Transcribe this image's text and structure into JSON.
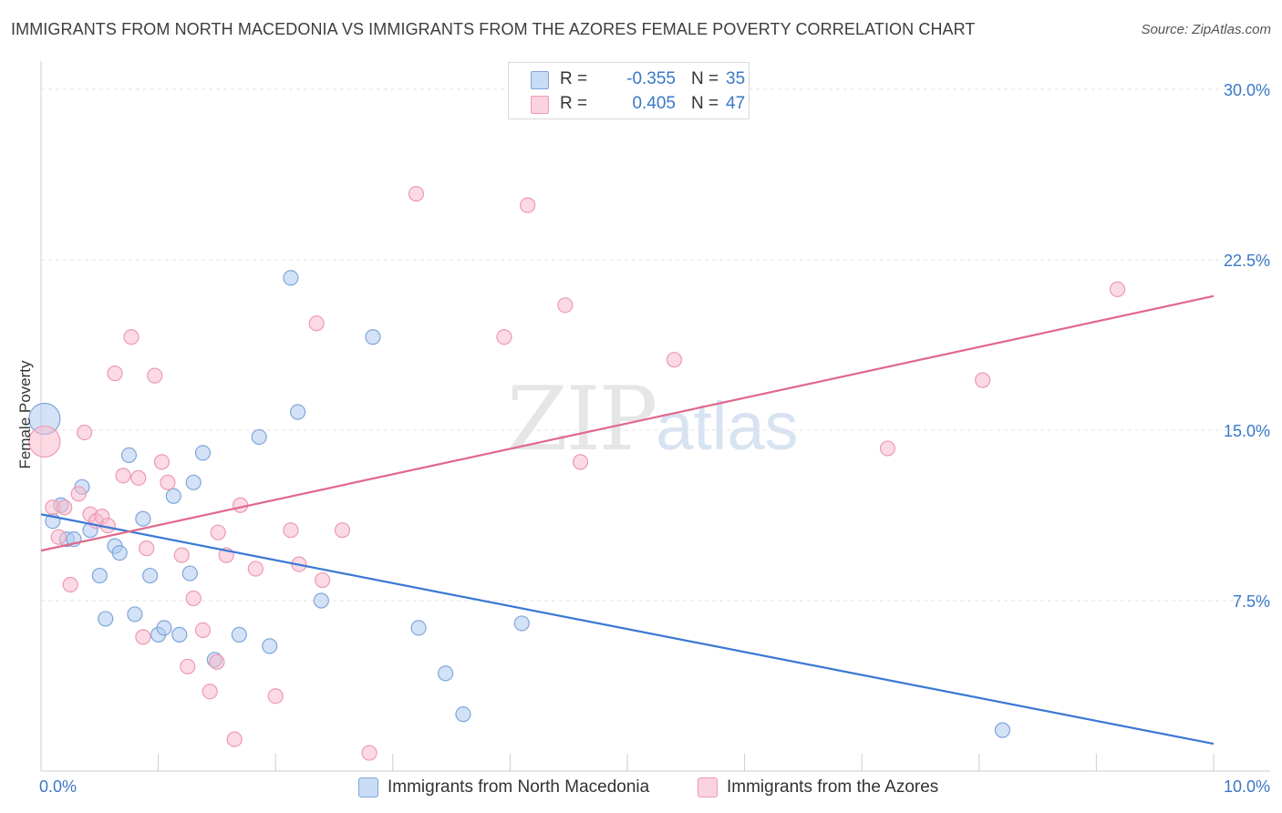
{
  "header": {
    "title": "IMMIGRANTS FROM NORTH MACEDONIA VS IMMIGRANTS FROM THE AZORES FEMALE POVERTY CORRELATION CHART",
    "source": "Source: ZipAtlas.com"
  },
  "watermark": {
    "zip": "ZIP",
    "atlas": "atlas"
  },
  "stats": {
    "rows": [
      {
        "r_label": "R =",
        "r_value": "-0.355",
        "n_label": "N =",
        "n_value": "35",
        "color": "#aecbf0"
      },
      {
        "r_label": "R =",
        "r_value": "0.405",
        "n_label": "N =",
        "n_value": "47",
        "color": "#f7bccd"
      }
    ]
  },
  "legend": {
    "items": [
      {
        "label": "Immigrants from North Macedonia",
        "color": "#aecbf0"
      },
      {
        "label": "Immigrants from the Azores",
        "color": "#f7bccd"
      }
    ]
  },
  "chart_data": {
    "type": "scatter",
    "title": "IMMIGRANTS FROM NORTH MACEDONIA VS IMMIGRANTS FROM THE AZORES FEMALE POVERTY CORRELATION CHART",
    "xlabel": "",
    "ylabel": "Female Poverty",
    "xlim": [
      0,
      10
    ],
    "ylim": [
      0,
      30.8
    ],
    "x_tick_labels": [
      {
        "value": 0,
        "label": "0.0%"
      },
      {
        "value": 10,
        "label": "10.0%"
      }
    ],
    "y_tick_labels": [
      {
        "value": 7.5,
        "label": "7.5%"
      },
      {
        "value": 15.0,
        "label": "15.0%"
      },
      {
        "value": 22.5,
        "label": "22.5%"
      },
      {
        "value": 30.0,
        "label": "30.0%"
      }
    ],
    "grid": true,
    "series": [
      {
        "name": "Immigrants from North Macedonia",
        "color": "#3a78d4",
        "fill": "#aecbf0",
        "trend": {
          "x": [
            0,
            10
          ],
          "y": [
            11.3,
            1.2
          ]
        },
        "points": [
          {
            "x": 0.03,
            "y": 15.5,
            "big": true
          },
          {
            "x": 0.1,
            "y": 11.0
          },
          {
            "x": 0.17,
            "y": 11.7
          },
          {
            "x": 0.22,
            "y": 10.2
          },
          {
            "x": 0.28,
            "y": 10.2
          },
          {
            "x": 0.35,
            "y": 12.5
          },
          {
            "x": 0.42,
            "y": 10.6
          },
          {
            "x": 0.5,
            "y": 8.6
          },
          {
            "x": 0.55,
            "y": 6.7
          },
          {
            "x": 0.63,
            "y": 9.9
          },
          {
            "x": 0.67,
            "y": 9.6
          },
          {
            "x": 0.75,
            "y": 13.9
          },
          {
            "x": 0.8,
            "y": 6.9
          },
          {
            "x": 0.87,
            "y": 11.1
          },
          {
            "x": 0.93,
            "y": 8.6
          },
          {
            "x": 1.0,
            "y": 6.0
          },
          {
            "x": 1.05,
            "y": 6.3
          },
          {
            "x": 1.13,
            "y": 12.1
          },
          {
            "x": 1.18,
            "y": 6.0
          },
          {
            "x": 1.27,
            "y": 8.7
          },
          {
            "x": 1.3,
            "y": 12.7
          },
          {
            "x": 1.38,
            "y": 14.0
          },
          {
            "x": 1.48,
            "y": 4.9
          },
          {
            "x": 1.69,
            "y": 6.0
          },
          {
            "x": 1.86,
            "y": 14.7
          },
          {
            "x": 1.95,
            "y": 5.5
          },
          {
            "x": 2.13,
            "y": 21.7
          },
          {
            "x": 2.19,
            "y": 15.8
          },
          {
            "x": 2.39,
            "y": 7.5
          },
          {
            "x": 2.83,
            "y": 19.1
          },
          {
            "x": 3.22,
            "y": 6.3
          },
          {
            "x": 3.45,
            "y": 4.3
          },
          {
            "x": 3.6,
            "y": 2.5
          },
          {
            "x": 4.1,
            "y": 6.5
          },
          {
            "x": 8.2,
            "y": 1.8
          }
        ]
      },
      {
        "name": "Immigrants from the Azores",
        "color": "#e0688c",
        "fill": "#f7bccd",
        "trend": {
          "x": [
            0,
            10
          ],
          "y": [
            9.7,
            20.9
          ]
        },
        "points": [
          {
            "x": 0.03,
            "y": 14.5,
            "big": true
          },
          {
            "x": 0.1,
            "y": 11.6
          },
          {
            "x": 0.15,
            "y": 10.3
          },
          {
            "x": 0.2,
            "y": 11.6
          },
          {
            "x": 0.25,
            "y": 8.2
          },
          {
            "x": 0.32,
            "y": 12.2
          },
          {
            "x": 0.37,
            "y": 14.9
          },
          {
            "x": 0.42,
            "y": 11.3
          },
          {
            "x": 0.47,
            "y": 11.0
          },
          {
            "x": 0.52,
            "y": 11.2
          },
          {
            "x": 0.57,
            "y": 10.8
          },
          {
            "x": 0.63,
            "y": 17.5
          },
          {
            "x": 0.7,
            "y": 13.0
          },
          {
            "x": 0.77,
            "y": 19.1
          },
          {
            "x": 0.83,
            "y": 12.9
          },
          {
            "x": 0.87,
            "y": 5.9
          },
          {
            "x": 0.9,
            "y": 9.8
          },
          {
            "x": 0.97,
            "y": 17.4
          },
          {
            "x": 1.03,
            "y": 13.6
          },
          {
            "x": 1.08,
            "y": 12.7
          },
          {
            "x": 1.2,
            "y": 9.5
          },
          {
            "x": 1.25,
            "y": 4.6
          },
          {
            "x": 1.3,
            "y": 7.6
          },
          {
            "x": 1.38,
            "y": 6.2
          },
          {
            "x": 1.44,
            "y": 3.5
          },
          {
            "x": 1.5,
            "y": 4.8
          },
          {
            "x": 1.51,
            "y": 10.5
          },
          {
            "x": 1.58,
            "y": 9.5
          },
          {
            "x": 1.65,
            "y": 1.4
          },
          {
            "x": 1.7,
            "y": 11.7
          },
          {
            "x": 1.83,
            "y": 8.9
          },
          {
            "x": 2.0,
            "y": 3.3
          },
          {
            "x": 2.13,
            "y": 10.6
          },
          {
            "x": 2.2,
            "y": 9.1
          },
          {
            "x": 2.35,
            "y": 19.7
          },
          {
            "x": 2.4,
            "y": 8.4
          },
          {
            "x": 2.57,
            "y": 10.6
          },
          {
            "x": 2.8,
            "y": 0.8
          },
          {
            "x": 3.2,
            "y": 25.4
          },
          {
            "x": 3.95,
            "y": 19.1
          },
          {
            "x": 4.15,
            "y": 24.9
          },
          {
            "x": 4.47,
            "y": 20.5
          },
          {
            "x": 4.6,
            "y": 13.6
          },
          {
            "x": 5.4,
            "y": 18.1
          },
          {
            "x": 7.22,
            "y": 14.2
          },
          {
            "x": 8.03,
            "y": 17.2
          },
          {
            "x": 9.18,
            "y": 21.2
          }
        ]
      }
    ]
  }
}
